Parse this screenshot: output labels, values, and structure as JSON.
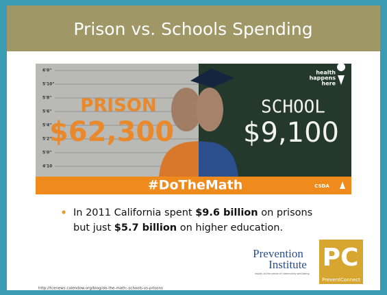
{
  "header": {
    "title": "Prison vs. Schools Spending"
  },
  "image": {
    "height_labels": [
      "6'0\"",
      "5'10\"",
      "5'8\"",
      "5'6\"",
      "5'4\"",
      "5'2\"",
      "5'0\"",
      "4'10"
    ],
    "left_label": "PRISON",
    "left_amount": "$62,300",
    "right_label": "SCHOOL",
    "right_amount": "$9,100",
    "badge": [
      "health",
      "happens",
      "here"
    ],
    "hashtag": "#DoTheMath",
    "sponsor": "CSDA"
  },
  "bullet": {
    "line1": [
      "In 2011 California spent ",
      "$9.6 billion",
      " on prisons"
    ],
    "line2": [
      "but just ",
      "$5.7 billion",
      " on higher education."
    ]
  },
  "logos": {
    "prevention": [
      "Prevention",
      "Institute"
    ],
    "prevention_tagline": "equity at the center of community well-being",
    "pc": "PC",
    "pc_name": "PreventConnect"
  },
  "source_url": "http://tcenews.calendow.org/blog/do-the-math:-schools-vs-prisons"
}
